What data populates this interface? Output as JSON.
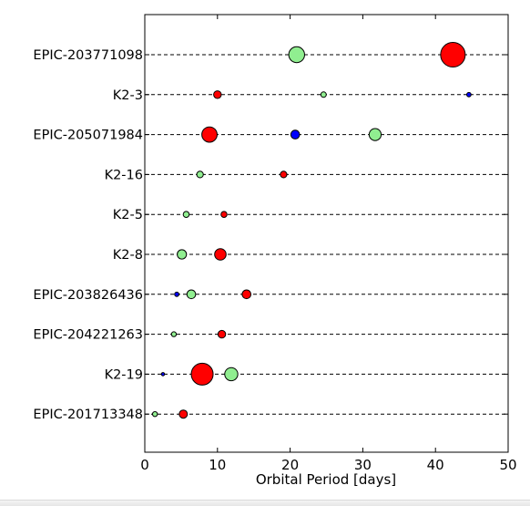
{
  "chart_data": {
    "type": "scatter",
    "title": "",
    "xlabel": "Orbital Period [days]",
    "ylabel": "",
    "xlim": [
      0,
      50
    ],
    "xticks": [
      0,
      10,
      20,
      30,
      40,
      50
    ],
    "grid": "dashed horizontal line per system",
    "legend": "none",
    "systems": [
      {
        "name": "EPIC-203771098",
        "planets": [
          {
            "period": 20.9,
            "size": 2.9,
            "color": "#90ee90"
          },
          {
            "period": 42.4,
            "size": 4.5,
            "color": "#ff0000"
          }
        ]
      },
      {
        "name": "K2-3",
        "planets": [
          {
            "period": 10.0,
            "size": 1.4,
            "color": "#ff0000"
          },
          {
            "period": 24.6,
            "size": 1.0,
            "color": "#90ee90"
          },
          {
            "period": 44.6,
            "size": 0.8,
            "color": "#0000ff"
          }
        ]
      },
      {
        "name": "EPIC-205071984",
        "planets": [
          {
            "period": 8.9,
            "size": 2.8,
            "color": "#ff0000"
          },
          {
            "period": 20.7,
            "size": 1.6,
            "color": "#0000ff"
          },
          {
            "period": 31.7,
            "size": 2.2,
            "color": "#90ee90"
          }
        ]
      },
      {
        "name": "K2-16",
        "planets": [
          {
            "period": 7.6,
            "size": 1.2,
            "color": "#90ee90"
          },
          {
            "period": 19.1,
            "size": 1.2,
            "color": "#ff0000"
          }
        ]
      },
      {
        "name": "K2-5",
        "planets": [
          {
            "period": 5.7,
            "size": 1.1,
            "color": "#90ee90"
          },
          {
            "period": 10.9,
            "size": 1.1,
            "color": "#ff0000"
          }
        ]
      },
      {
        "name": "K2-8",
        "planets": [
          {
            "period": 5.1,
            "size": 1.7,
            "color": "#90ee90"
          },
          {
            "period": 10.4,
            "size": 2.1,
            "color": "#ff0000"
          }
        ]
      },
      {
        "name": "EPIC-203826436",
        "planets": [
          {
            "period": 4.4,
            "size": 0.8,
            "color": "#0000ff"
          },
          {
            "period": 6.4,
            "size": 1.6,
            "color": "#90ee90"
          },
          {
            "period": 14.0,
            "size": 1.6,
            "color": "#ff0000"
          }
        ]
      },
      {
        "name": "EPIC-204221263",
        "planets": [
          {
            "period": 4.0,
            "size": 0.9,
            "color": "#90ee90"
          },
          {
            "period": 10.6,
            "size": 1.4,
            "color": "#ff0000"
          }
        ]
      },
      {
        "name": "K2-19",
        "planets": [
          {
            "period": 2.5,
            "size": 0.6,
            "color": "#0000ff"
          },
          {
            "period": 7.9,
            "size": 4.0,
            "color": "#ff0000"
          },
          {
            "period": 11.9,
            "size": 2.4,
            "color": "#90ee90"
          }
        ]
      },
      {
        "name": "EPIC-201713348",
        "planets": [
          {
            "period": 1.4,
            "size": 0.9,
            "color": "#90ee90"
          },
          {
            "period": 5.3,
            "size": 1.5,
            "color": "#ff0000"
          }
        ]
      }
    ]
  }
}
